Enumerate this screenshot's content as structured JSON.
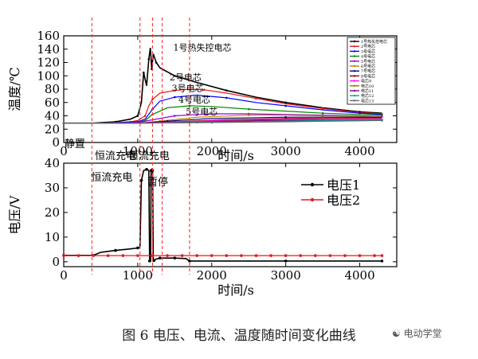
{
  "caption": "图 6 电压、电流、温度随时间变化曲线",
  "watermark": "电动学堂",
  "chart_data": [
    {
      "type": "line",
      "ylabel": "温度/℃",
      "xlabel": "时间/s",
      "xlim": [
        0,
        4500
      ],
      "ylim": [
        0,
        160
      ],
      "xticks": [
        0,
        1000,
        2000,
        3000,
        4000
      ],
      "yticks": [
        0,
        20,
        40,
        60,
        80,
        100,
        120,
        140,
        160
      ],
      "annotations": [
        {
          "text": "1号热失控电芯",
          "x": 1480,
          "y": 138
        },
        {
          "text": "2号电芯",
          "x": 1430,
          "y": 93
        },
        {
          "text": "3号电芯",
          "x": 1460,
          "y": 77
        },
        {
          "text": "4号电芯",
          "x": 1550,
          "y": 60
        },
        {
          "text": "5号电芯",
          "x": 1650,
          "y": 42
        }
      ],
      "legend": {
        "position": "top-right",
        "entries": [
          {
            "label": "1号热失控电芯",
            "color": "#000000"
          },
          {
            "label": "2号电芯",
            "color": "#e41a1c"
          },
          {
            "label": "3号电芯",
            "color": "#0000ff"
          },
          {
            "label": "4号电芯",
            "color": "#008a00"
          },
          {
            "label": "5号电芯",
            "color": "#9400d3"
          },
          {
            "label": "6号电芯",
            "color": "#c08000"
          },
          {
            "label": "7号电芯",
            "color": "#000080"
          },
          {
            "label": "8号电芯",
            "color": "#8b0000"
          },
          {
            "label": "电芯9",
            "color": "#ff00ff"
          },
          {
            "label": "电芯10",
            "color": "#808000"
          },
          {
            "label": "电芯11",
            "color": "#800080"
          },
          {
            "label": "电芯12",
            "color": "#00a0a0"
          },
          {
            "label": "电芯13",
            "color": "#666666"
          }
        ]
      },
      "series": [
        {
          "color": "#000000",
          "x": [
            0,
            400,
            700,
            900,
            1000,
            1050,
            1080,
            1120,
            1150,
            1170,
            1190,
            1210,
            1250,
            1300,
            1500,
            1800,
            2200,
            2600,
            3000,
            3500,
            4000,
            4300
          ],
          "y": [
            29,
            29,
            31,
            35,
            40,
            60,
            105,
            85,
            125,
            142,
            110,
            133,
            120,
            112,
            100,
            90,
            78,
            68,
            60,
            52,
            46,
            44
          ]
        },
        {
          "color": "#e41a1c",
          "x": [
            0,
            500,
            900,
            1000,
            1100,
            1150,
            1200,
            1300,
            1500,
            1700,
            1900,
            2200,
            2600,
            3000,
            3500,
            4000,
            4300
          ],
          "y": [
            29,
            29,
            31,
            33,
            40,
            55,
            65,
            74,
            78,
            80,
            79,
            74,
            66,
            58,
            51,
            45,
            43
          ]
        },
        {
          "color": "#0000ff",
          "x": [
            0,
            500,
            1000,
            1100,
            1200,
            1300,
            1500,
            1800,
            2200,
            2600,
            3000,
            3500,
            4000,
            4300
          ],
          "y": [
            29,
            29,
            31,
            35,
            50,
            62,
            68,
            71,
            67,
            60,
            55,
            49,
            44,
            42
          ]
        },
        {
          "color": "#008a00",
          "x": [
            0,
            500,
            1000,
            1100,
            1200,
            1400,
            1700,
            2000,
            2500,
            3000,
            3500,
            4000,
            4300
          ],
          "y": [
            29,
            29,
            30,
            33,
            42,
            52,
            55,
            54,
            50,
            47,
            44,
            42,
            41
          ]
        },
        {
          "color": "#9400d3",
          "x": [
            0,
            500,
            1000,
            1200,
            1500,
            2000,
            2500,
            3000,
            3500,
            4000,
            4300
          ],
          "y": [
            29,
            29,
            30,
            34,
            40,
            43,
            43,
            42,
            41,
            40,
            39
          ]
        },
        {
          "color": "#c08000",
          "x": [
            0,
            1000,
            1300,
            1800,
            2500,
            3000,
            3500,
            4300
          ],
          "y": [
            29,
            29,
            32,
            38,
            41,
            41,
            40,
            39
          ]
        },
        {
          "color": "#000080",
          "x": [
            0,
            1000,
            1400,
            2000,
            3000,
            4300
          ],
          "y": [
            29,
            29,
            32,
            36,
            38,
            38
          ]
        },
        {
          "color": "#8b0000",
          "x": [
            0,
            1000,
            1500,
            2200,
            3000,
            4300
          ],
          "y": [
            29,
            29,
            31,
            34,
            36,
            37
          ]
        },
        {
          "color": "#ff00ff",
          "x": [
            0,
            1000,
            1600,
            2500,
            3500,
            4300
          ],
          "y": [
            29,
            29,
            31,
            34,
            36,
            36
          ]
        },
        {
          "color": "#808000",
          "x": [
            0,
            1000,
            1600,
            2500,
            3500,
            4300
          ],
          "y": [
            29,
            29,
            30,
            33,
            35,
            35
          ]
        },
        {
          "color": "#800080",
          "x": [
            0,
            1000,
            1700,
            2700,
            4300
          ],
          "y": [
            29,
            29,
            30,
            33,
            34
          ]
        },
        {
          "color": "#00a0a0",
          "x": [
            0,
            1000,
            1800,
            3000,
            4300
          ],
          "y": [
            29,
            29,
            30,
            32,
            34
          ]
        },
        {
          "color": "#666666",
          "x": [
            0,
            1000,
            2000,
            3000,
            4300
          ],
          "y": [
            29,
            29,
            30,
            31,
            33
          ]
        }
      ]
    },
    {
      "type": "line",
      "ylabel": "电压/V",
      "xlabel": "时间/s",
      "xlim": [
        0,
        4500
      ],
      "ylim": [
        -2,
        40
      ],
      "xticks": [
        0,
        1000,
        2000,
        3000,
        4000
      ],
      "yticks": [
        0,
        10,
        20,
        30,
        40
      ],
      "legend": {
        "position": "top-right"
      },
      "series": [
        {
          "name": "电压1",
          "color": "#000000",
          "x": [
            0,
            360,
            400,
            500,
            700,
            900,
            1000,
            1030,
            1050,
            1080,
            1120,
            1150,
            1160,
            1175,
            1180,
            1190,
            1200,
            1210,
            1220,
            1240,
            1300,
            1400,
            1500,
            1650,
            1700,
            2000,
            3000,
            4000,
            4300
          ],
          "y": [
            2.6,
            2.6,
            2.6,
            3.8,
            4.6,
            5.2,
            5.6,
            6,
            33,
            37,
            37.5,
            37,
            0.3,
            0.3,
            37,
            37.5,
            37,
            0.3,
            0.5,
            1,
            1.5,
            1.5,
            1.5,
            1.3,
            0.3,
            0.3,
            0.3,
            0.3,
            0.3
          ]
        },
        {
          "name": "电压2",
          "color": "#e41a1c",
          "x": [
            0,
            200,
            400,
            600,
            800,
            1000,
            1200,
            1400,
            1600,
            1800,
            2000,
            2200,
            2400,
            2600,
            2800,
            3000,
            3200,
            3400,
            3600,
            3800,
            4000,
            4200,
            4300
          ],
          "y": [
            2.5,
            2.5,
            2.5,
            2.5,
            2.5,
            2.5,
            2.5,
            2.5,
            2.5,
            2.5,
            2.5,
            2.5,
            2.5,
            2.5,
            2.5,
            2.5,
            2.5,
            2.5,
            2.5,
            2.5,
            2.5,
            2.5,
            2.5
          ]
        }
      ]
    }
  ],
  "phases": {
    "boundaries": [
      380,
      1030,
      1200,
      1330,
      1700
    ],
    "labels": [
      {
        "text": "静置",
        "x": 150
      },
      {
        "text": "恒流充电",
        "x": 700
      },
      {
        "text": "恒流充电",
        "x": 650
      },
      {
        "text": "恒流充电",
        "x": 1150
      },
      {
        "text": "暂停",
        "x": 1270
      }
    ]
  }
}
